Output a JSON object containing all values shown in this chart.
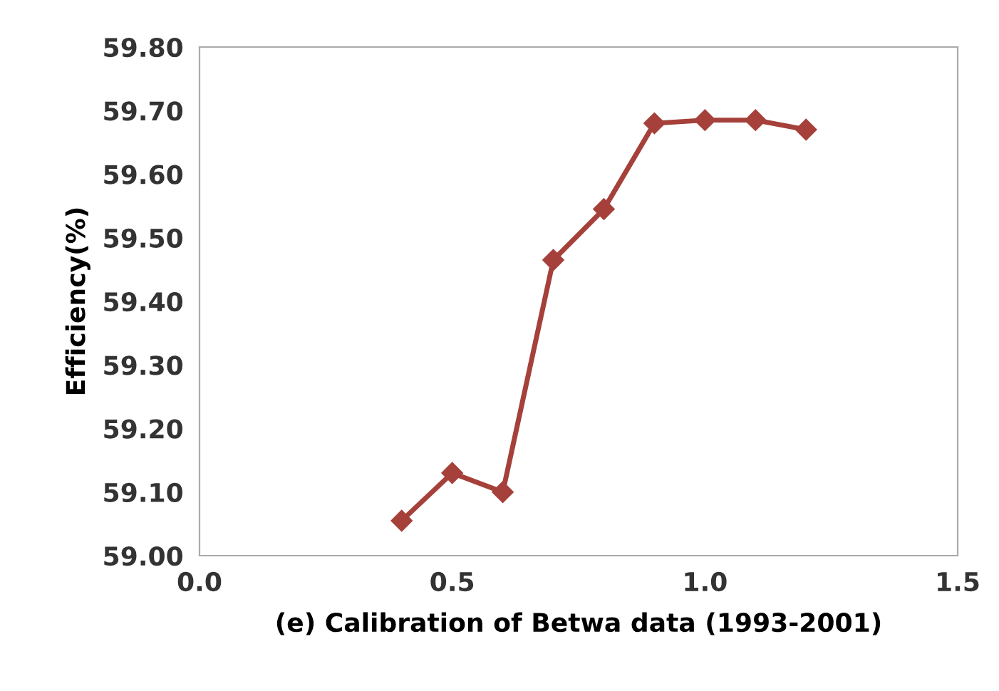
{
  "chart_data": {
    "type": "line",
    "xlabel": "(e) Calibration of Betwa data (1993-2001)",
    "ylabel": "Efficiency(%)",
    "x": [
      0.4,
      0.5,
      0.6,
      0.7,
      0.8,
      0.9,
      1.0,
      1.1,
      1.2
    ],
    "series": [
      {
        "color": "#a5403a",
        "values": [
          59.055,
          59.13,
          59.1,
          59.465,
          59.545,
          59.68,
          59.685,
          59.685,
          59.67
        ]
      }
    ],
    "xlim": [
      0.0,
      1.5
    ],
    "xticks": [
      {
        "value": 0.0,
        "label": "0.0"
      },
      {
        "value": 0.5,
        "label": "0.5"
      },
      {
        "value": 1.0,
        "label": "1.0"
      },
      {
        "value": 1.5,
        "label": "1.5"
      }
    ],
    "ylim": [
      59.0,
      59.8
    ],
    "yticks": [
      {
        "value": 59.0,
        "label": "59.00"
      },
      {
        "value": 59.1,
        "label": "59.10"
      },
      {
        "value": 59.2,
        "label": "59.20"
      },
      {
        "value": 59.3,
        "label": "59.30"
      },
      {
        "value": 59.4,
        "label": "59.40"
      },
      {
        "value": 59.5,
        "label": "59.50"
      },
      {
        "value": 59.6,
        "label": "59.60"
      },
      {
        "value": 59.7,
        "label": "59.70"
      },
      {
        "value": 59.8,
        "label": "59.80"
      }
    ],
    "grid": false,
    "marker": "diamond",
    "line_style": "solid",
    "legend": false
  }
}
